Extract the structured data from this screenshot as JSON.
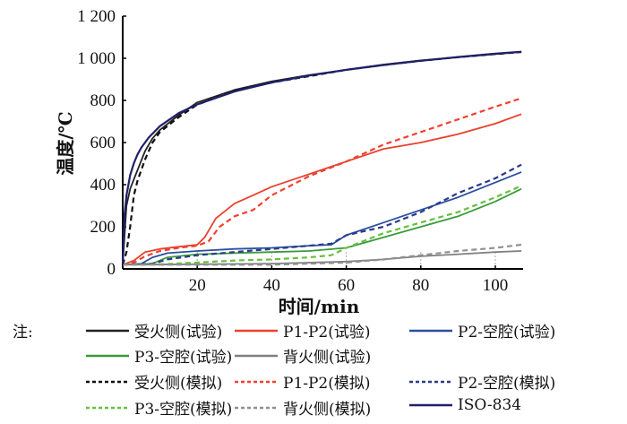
{
  "chart_data": {
    "type": "line",
    "title": "",
    "xlabel": "时间/min",
    "ylabel": "温度/℃",
    "xlim": [
      0,
      108
    ],
    "ylim": [
      0,
      1200
    ],
    "xticks": [
      20,
      40,
      60,
      80,
      100
    ],
    "xtick_labels": [
      "20",
      "40",
      "60",
      "80",
      "100"
    ],
    "yticks": [
      0,
      200,
      400,
      600,
      800,
      1000,
      1200
    ],
    "ytick_labels": [
      "0",
      "200",
      "400",
      "600",
      "800",
      "1 000",
      "1 200"
    ],
    "grid": false,
    "legend_position": "bottom",
    "legend_note": "注:",
    "series": [
      {
        "name": "受火侧(试验)",
        "color": "#222222",
        "style": "solid",
        "x": [
          0,
          1,
          2,
          4,
          6,
          8,
          10,
          15,
          20,
          30,
          40,
          50,
          60,
          70,
          80,
          90,
          100,
          107
        ],
        "y": [
          20,
          300,
          380,
          470,
          560,
          620,
          660,
          730,
          790,
          850,
          890,
          920,
          945,
          970,
          990,
          1005,
          1020,
          1030
        ]
      },
      {
        "name": "P1-P2(试验)",
        "color": "#e8412c",
        "style": "solid",
        "x": [
          0,
          3,
          6,
          10,
          15,
          20,
          22,
          25,
          30,
          35,
          40,
          50,
          60,
          70,
          80,
          90,
          100,
          107
        ],
        "y": [
          20,
          40,
          80,
          95,
          105,
          115,
          150,
          240,
          310,
          350,
          390,
          450,
          510,
          570,
          600,
          640,
          690,
          735
        ]
      },
      {
        "name": "P2-空腔(试验)",
        "color": "#2a4fa0",
        "style": "solid",
        "x": [
          0,
          5,
          8,
          12,
          20,
          30,
          40,
          50,
          56,
          60,
          70,
          80,
          90,
          100,
          107
        ],
        "y": [
          20,
          25,
          55,
          75,
          85,
          95,
          100,
          110,
          115,
          160,
          220,
          280,
          340,
          410,
          460
        ]
      },
      {
        "name": "P3-空腔(试验)",
        "color": "#3a9a3a",
        "style": "solid",
        "x": [
          0,
          8,
          12,
          20,
          30,
          40,
          50,
          60,
          70,
          80,
          90,
          100,
          107
        ],
        "y": [
          20,
          25,
          55,
          70,
          75,
          80,
          85,
          100,
          150,
          200,
          250,
          320,
          380
        ]
      },
      {
        "name": "背火侧(试验)",
        "color": "#808080",
        "style": "solid",
        "x": [
          0,
          20,
          40,
          60,
          70,
          80,
          90,
          100,
          107
        ],
        "y": [
          20,
          22,
          25,
          35,
          45,
          60,
          70,
          80,
          85
        ]
      },
      {
        "name": "受火侧(模拟)",
        "color": "#111111",
        "style": "dashed",
        "x": [
          0,
          1,
          2,
          3,
          4,
          6,
          8,
          10,
          15,
          20,
          30,
          40,
          50,
          60,
          70,
          80,
          90,
          100,
          107
        ],
        "y": [
          20,
          80,
          200,
          350,
          420,
          520,
          600,
          650,
          720,
          780,
          845,
          885,
          915,
          945,
          968,
          988,
          1005,
          1020,
          1030
        ]
      },
      {
        "name": "P1-P2(模拟)",
        "color": "#f04030",
        "style": "dashed",
        "x": [
          0,
          3,
          6,
          10,
          15,
          20,
          23,
          26,
          30,
          35,
          40,
          50,
          60,
          70,
          80,
          90,
          100,
          107
        ],
        "y": [
          20,
          30,
          60,
          85,
          100,
          110,
          130,
          200,
          250,
          280,
          350,
          440,
          510,
          590,
          650,
          710,
          770,
          810
        ]
      },
      {
        "name": "P2-空腔(模拟)",
        "color": "#2b3a8c",
        "style": "dashed",
        "x": [
          0,
          8,
          12,
          20,
          30,
          40,
          50,
          56,
          60,
          70,
          80,
          90,
          100,
          107
        ],
        "y": [
          20,
          25,
          45,
          65,
          80,
          95,
          110,
          120,
          160,
          200,
          270,
          360,
          430,
          495
        ]
      },
      {
        "name": "P3-空腔(模拟)",
        "color": "#66c040",
        "style": "dashed",
        "x": [
          0,
          10,
          20,
          30,
          40,
          50,
          56,
          60,
          70,
          80,
          90,
          100,
          107
        ],
        "y": [
          20,
          22,
          30,
          40,
          45,
          55,
          65,
          100,
          170,
          220,
          270,
          340,
          395
        ]
      },
      {
        "name": "背火侧(模拟)",
        "color": "#909090",
        "style": "dashed",
        "x": [
          0,
          20,
          40,
          60,
          70,
          80,
          90,
          100,
          107
        ],
        "y": [
          20,
          20,
          20,
          30,
          45,
          65,
          85,
          100,
          115
        ]
      },
      {
        "name": "ISO-834",
        "color": "#20206a",
        "style": "solid",
        "x": [
          0,
          0.5,
          1,
          2,
          3,
          4,
          5,
          7,
          10,
          15,
          20,
          30,
          40,
          50,
          60,
          70,
          80,
          90,
          100,
          107
        ],
        "y": [
          20,
          260,
          349,
          445,
          502,
          544,
          576,
          624,
          678,
          739,
          781,
          842,
          885,
          918,
          945,
          968,
          988,
          1006,
          1022,
          1031
        ]
      }
    ]
  }
}
